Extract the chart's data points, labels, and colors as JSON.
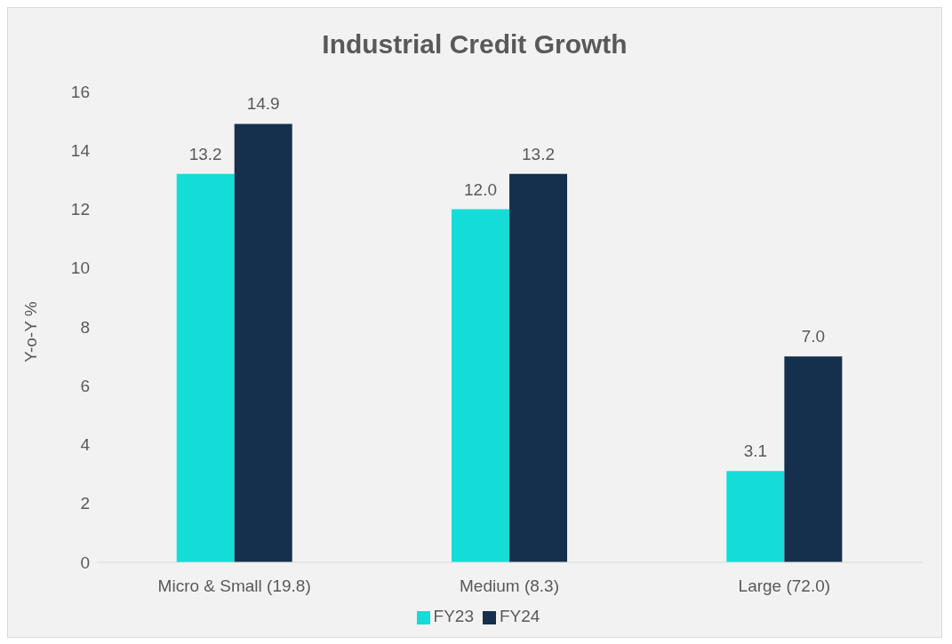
{
  "chart_data": {
    "type": "bar",
    "title": "Industrial Credit Growth",
    "ylabel": "Y-o-Y %",
    "categories": [
      "Micro & Small (19.8)",
      "Medium (8.3)",
      "Large (72.0)"
    ],
    "series": [
      {
        "name": "FY23",
        "color": "#13ddd6",
        "values": [
          13.2,
          12.0,
          3.1
        ],
        "value_labels": [
          "13.2",
          "12.0",
          "3.1"
        ]
      },
      {
        "name": "FY24",
        "color": "#15304d",
        "values": [
          14.9,
          13.2,
          7.0
        ],
        "value_labels": [
          "14.9",
          "13.2",
          "7.0"
        ]
      }
    ],
    "ylim": [
      0,
      16
    ],
    "yticks": [
      0,
      2,
      4,
      6,
      8,
      10,
      12,
      14,
      16
    ],
    "grid": false,
    "legend": "bottom"
  }
}
